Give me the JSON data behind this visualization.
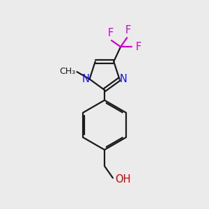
{
  "bg_color": "#ebebeb",
  "bond_color": "#1a1a1a",
  "N_color": "#1414ff",
  "O_color": "#cc0000",
  "F_color": "#cc00cc",
  "line_width": 1.6,
  "font_size": 10.5,
  "xlim": [
    0,
    10
  ],
  "ylim": [
    0,
    12
  ],
  "figsize": [
    3.0,
    3.0
  ],
  "dpi": 100
}
